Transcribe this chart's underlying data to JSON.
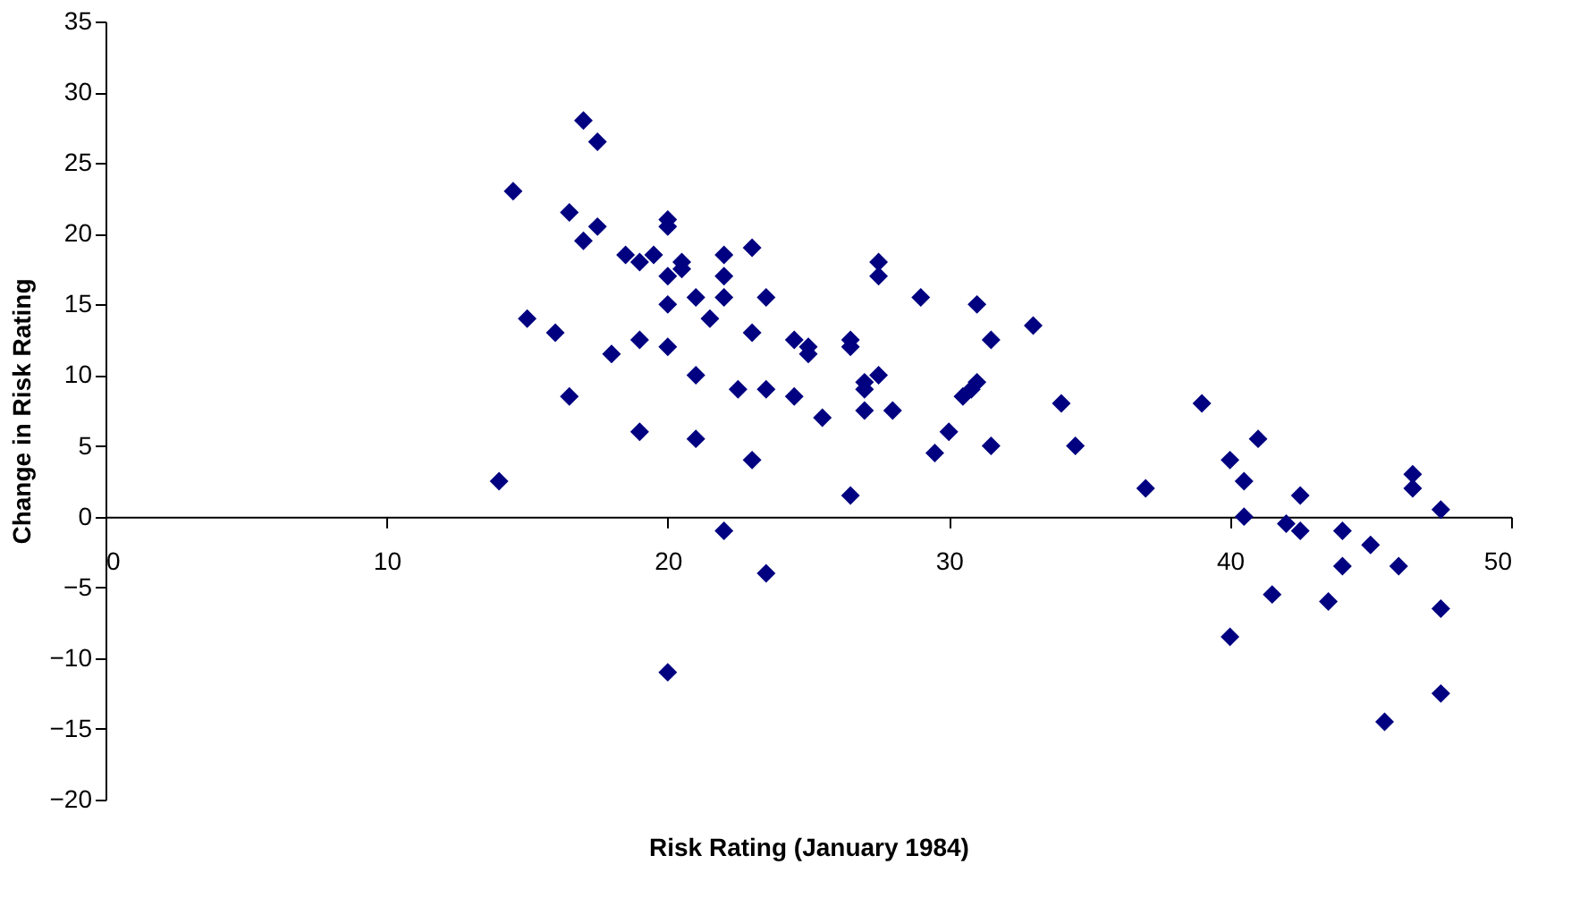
{
  "chart_data": {
    "type": "scatter",
    "xlabel": "Risk Rating (January 1984)",
    "ylabel": "Change in Risk Rating",
    "xlim": [
      0,
      50
    ],
    "xticks": [
      0,
      10,
      20,
      30,
      40,
      50
    ],
    "ylim": [
      -20,
      35
    ],
    "yticks": [
      -20,
      -15,
      -10,
      -5,
      0,
      5,
      10,
      15,
      20,
      25,
      30,
      35
    ],
    "grid": false,
    "marker": "diamond",
    "series": [
      {
        "color": "#000080",
        "x": [
          14,
          14.5,
          15,
          16,
          16.5,
          16.5,
          17,
          17.5,
          17,
          17.5,
          18,
          18.5,
          19,
          19,
          19,
          19.5,
          20,
          20,
          20,
          20,
          20,
          20,
          20.5,
          20.5,
          21,
          21,
          21,
          21.5,
          22,
          22,
          22,
          22,
          22.5,
          23,
          23,
          23,
          23.5,
          23.5,
          23.5,
          24.5,
          24.5,
          25,
          25,
          25.5,
          26.5,
          26.5,
          26.5,
          27,
          27,
          27.5,
          27.5,
          27.5,
          27,
          28,
          29,
          29.5,
          30,
          30.5,
          31,
          31,
          30.8,
          31.5,
          31.5,
          33,
          34,
          34.5,
          37,
          39,
          40,
          40,
          40.5,
          40.5,
          41,
          41.5,
          42,
          42.5,
          42.5,
          43.5,
          44,
          44,
          45,
          45.5,
          46,
          46.5,
          46.5,
          47.5,
          47.5,
          47.5
        ],
        "values": [
          2.5,
          23,
          14,
          13,
          21.5,
          8.5,
          28,
          26.5,
          19.5,
          20.5,
          11.5,
          18.5,
          18,
          12.5,
          6,
          18.5,
          21,
          20.5,
          17,
          15,
          12,
          -11,
          17.5,
          18,
          15.5,
          10,
          5.5,
          14,
          18.5,
          17,
          15.5,
          -1,
          9,
          19,
          13,
          4,
          15.5,
          9,
          -4,
          12.5,
          8.5,
          12,
          11.5,
          7,
          12.5,
          12,
          1.5,
          9,
          7.5,
          18,
          17,
          10,
          9.5,
          7.5,
          15.5,
          4.5,
          6,
          8.5,
          15,
          9.5,
          9,
          12.5,
          5,
          13.5,
          8,
          5,
          2,
          8,
          4,
          -8.5,
          2.5,
          0,
          5.5,
          -5.5,
          -0.5,
          1.5,
          -1,
          -6,
          -1,
          -3.5,
          -2,
          -14.5,
          -3.5,
          3,
          2,
          0.5,
          -6.5,
          -12.5
        ]
      }
    ]
  }
}
